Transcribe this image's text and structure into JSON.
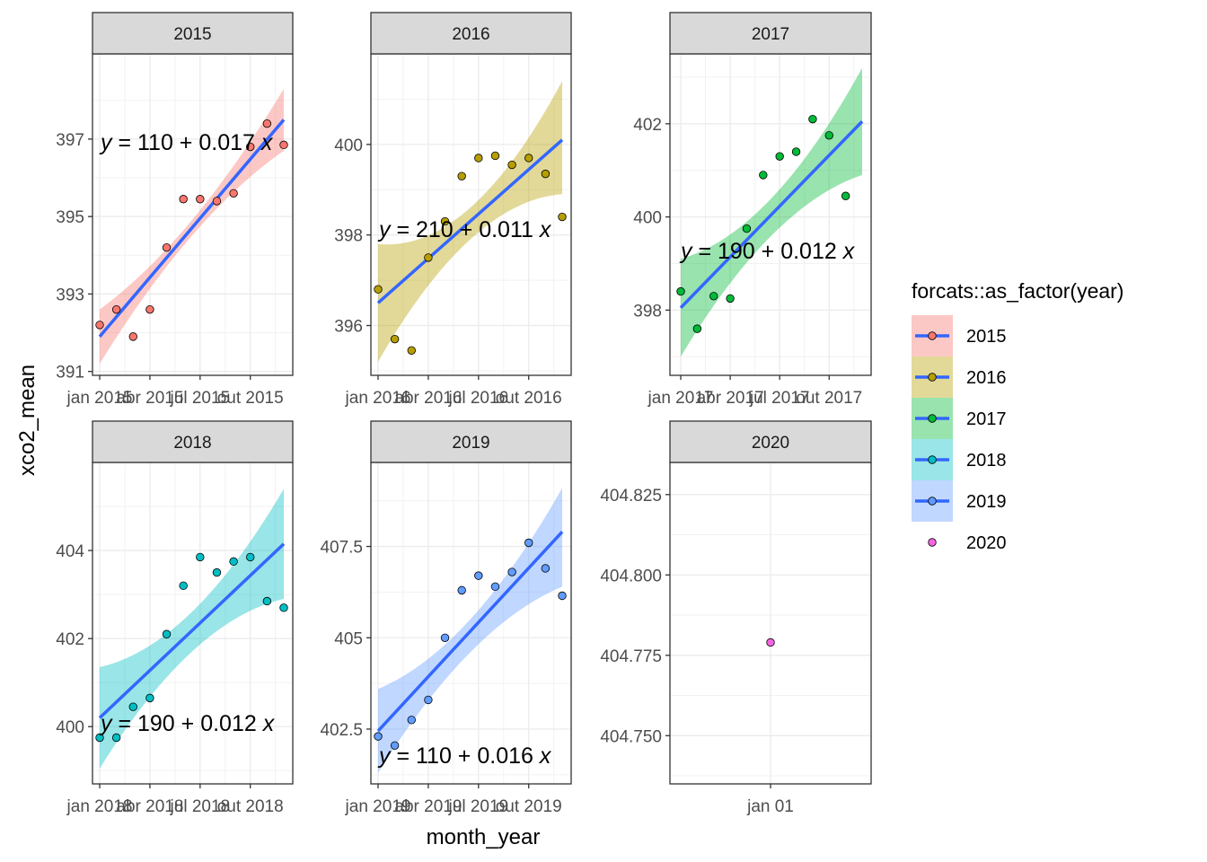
{
  "chart_data": {
    "type": "scatter",
    "xlabel": "month_year",
    "ylabel": "xco2_mean",
    "legend": {
      "title": "forcats::as_factor(year)",
      "position": "right"
    },
    "colors": {
      "2015": "#F8766D",
      "2016": "#B79F00",
      "2017": "#00BA38",
      "2018": "#00BFC4",
      "2019": "#619CFF",
      "2020": "#F564E3",
      "fit_line": "#3366FF"
    },
    "panels": [
      {
        "strip": "2015",
        "equation": {
          "y": "y",
          "lhs_rest": " = 110 + 0.017 ",
          "x": "x"
        },
        "x_ticks": [
          {
            "month": 1,
            "label": "jan 2015"
          },
          {
            "month": 4,
            "label": "abr 2015"
          },
          {
            "month": 7,
            "label": "jul 2015"
          },
          {
            "month": 10,
            "label": "out 2015"
          }
        ],
        "y_ticks": [
          391,
          393,
          395,
          397
        ],
        "ylim": [
          390.9,
          399.2
        ],
        "points": [
          {
            "month": 1,
            "value": 392.2
          },
          {
            "month": 2,
            "value": 392.6
          },
          {
            "month": 3,
            "value": 391.9
          },
          {
            "month": 4,
            "value": 392.6
          },
          {
            "month": 5,
            "value": 394.2
          },
          {
            "month": 6,
            "value": 395.45
          },
          {
            "month": 7,
            "value": 395.45
          },
          {
            "month": 8,
            "value": 395.4
          },
          {
            "month": 9,
            "value": 395.6
          },
          {
            "month": 10,
            "value": 396.8
          },
          {
            "month": 11,
            "value": 397.4
          },
          {
            "month": 12,
            "value": 396.85
          }
        ],
        "fit": {
          "start": 391.9,
          "end": 397.5
        },
        "band": {
          "start": [
            391.2,
            392.6
          ],
          "mid": [
            394.5,
            394.9
          ],
          "end": [
            396.7,
            398.3
          ]
        }
      },
      {
        "strip": "2016",
        "equation": {
          "y": "y",
          "lhs_rest": " = 210 + 0.011 ",
          "x": "x"
        },
        "x_ticks": [
          {
            "month": 1,
            "label": "jan 2016"
          },
          {
            "month": 4,
            "label": "abr 2016"
          },
          {
            "month": 7,
            "label": "jul 2016"
          },
          {
            "month": 10,
            "label": "out 2016"
          }
        ],
        "y_ticks": [
          396,
          398,
          400
        ],
        "ylim": [
          394.9,
          402.0
        ],
        "points": [
          {
            "month": 1,
            "value": 396.8
          },
          {
            "month": 2,
            "value": 395.7
          },
          {
            "month": 3,
            "value": 395.45
          },
          {
            "month": 4,
            "value": 397.5
          },
          {
            "month": 5,
            "value": 398.3
          },
          {
            "month": 6,
            "value": 399.3
          },
          {
            "month": 7,
            "value": 399.7
          },
          {
            "month": 8,
            "value": 399.75
          },
          {
            "month": 9,
            "value": 399.55
          },
          {
            "month": 10,
            "value": 399.7
          },
          {
            "month": 11,
            "value": 399.35
          },
          {
            "month": 12,
            "value": 398.4
          }
        ],
        "fit": {
          "start": 396.5,
          "end": 400.1
        },
        "band": {
          "start": [
            395.2,
            397.8
          ],
          "mid": [
            397.9,
            398.6
          ],
          "end": [
            398.9,
            401.4
          ]
        }
      },
      {
        "strip": "2017",
        "equation": {
          "y": "y",
          "lhs_rest": " = 190 + 0.012 ",
          "x": "x"
        },
        "x_ticks": [
          {
            "month": 1,
            "label": "jan 2017"
          },
          {
            "month": 4,
            "label": "abr 2017"
          },
          {
            "month": 7,
            "label": "jul 2017"
          },
          {
            "month": 10,
            "label": "out 2017"
          }
        ],
        "y_ticks": [
          398,
          400,
          402
        ],
        "ylim": [
          396.6,
          403.5
        ],
        "points": [
          {
            "month": 1,
            "value": 398.4
          },
          {
            "month": 2,
            "value": 397.6
          },
          {
            "month": 3,
            "value": 398.3
          },
          {
            "month": 4,
            "value": 398.25
          },
          {
            "month": 5,
            "value": 399.75
          },
          {
            "month": 6,
            "value": 400.9
          },
          {
            "month": 7,
            "value": 401.3
          },
          {
            "month": 8,
            "value": 401.4
          },
          {
            "month": 9,
            "value": 402.1
          },
          {
            "month": 10,
            "value": 401.75
          },
          {
            "month": 11,
            "value": 400.45
          }
        ],
        "fit": {
          "start": 398.05,
          "end": 402.05
        },
        "band": {
          "start": [
            397.0,
            399.1
          ],
          "mid": [
            399.6,
            400.4
          ],
          "end": [
            400.9,
            403.2
          ]
        }
      },
      {
        "strip": "2018",
        "equation": {
          "y": "y",
          "lhs_rest": " = 190 + 0.012 ",
          "x": "x"
        },
        "x_ticks": [
          {
            "month": 1,
            "label": "jan 2018"
          },
          {
            "month": 4,
            "label": "abr 2018"
          },
          {
            "month": 7,
            "label": "jul 2018"
          },
          {
            "month": 10,
            "label": "out 2018"
          }
        ],
        "y_ticks": [
          400,
          402,
          404
        ],
        "ylim": [
          398.7,
          406.0
        ],
        "points": [
          {
            "month": 1,
            "value": 399.75
          },
          {
            "month": 2,
            "value": 399.75
          },
          {
            "month": 3,
            "value": 400.45
          },
          {
            "month": 4,
            "value": 400.65
          },
          {
            "month": 5,
            "value": 402.1
          },
          {
            "month": 6,
            "value": 403.2
          },
          {
            "month": 7,
            "value": 403.85
          },
          {
            "month": 8,
            "value": 403.5
          },
          {
            "month": 9,
            "value": 403.75
          },
          {
            "month": 10,
            "value": 403.85
          },
          {
            "month": 11,
            "value": 402.85
          },
          {
            "month": 12,
            "value": 402.7
          }
        ],
        "fit": {
          "start": 400.2,
          "end": 404.15
        },
        "band": {
          "start": [
            399.05,
            401.35
          ],
          "mid": [
            401.7,
            402.6
          ],
          "end": [
            402.9,
            405.4
          ]
        }
      },
      {
        "strip": "2019",
        "equation": {
          "y": "y",
          "lhs_rest": " = 110 + 0.016 ",
          "x": "x"
        },
        "x_ticks": [
          {
            "month": 1,
            "label": "jan 2019"
          },
          {
            "month": 4,
            "label": "abr 2019"
          },
          {
            "month": 7,
            "label": "jul 2019"
          },
          {
            "month": 10,
            "label": "out 2019"
          }
        ],
        "y_ticks": [
          402.5,
          405.0,
          407.5
        ],
        "ylim": [
          401.0,
          409.8
        ],
        "points": [
          {
            "month": 1,
            "value": 402.3
          },
          {
            "month": 2,
            "value": 402.05
          },
          {
            "month": 3,
            "value": 402.75
          },
          {
            "month": 4,
            "value": 403.3
          },
          {
            "month": 5,
            "value": 405.0
          },
          {
            "month": 6,
            "value": 406.3
          },
          {
            "month": 7,
            "value": 406.7
          },
          {
            "month": 8,
            "value": 406.4
          },
          {
            "month": 9,
            "value": 406.8
          },
          {
            "month": 10,
            "value": 407.6
          },
          {
            "month": 11,
            "value": 406.9
          },
          {
            "month": 12,
            "value": 406.15
          }
        ],
        "fit": {
          "start": 402.45,
          "end": 407.9
        },
        "band": {
          "start": [
            401.3,
            403.6
          ],
          "mid": [
            404.6,
            405.5
          ],
          "end": [
            406.4,
            409.1
          ]
        }
      },
      {
        "strip": "2020",
        "equation": null,
        "x_ticks": [
          {
            "month": 1,
            "label": "jan 01"
          }
        ],
        "y_ticks": [
          404.75,
          404.775,
          404.8,
          404.825
        ],
        "y_tick_labels": [
          "404.750",
          "404.775",
          "404.800",
          "404.825"
        ],
        "ylim": [
          404.735,
          404.835
        ],
        "points": [
          {
            "month": 1,
            "value": 404.779
          }
        ],
        "fit": null,
        "band": null
      }
    ]
  }
}
